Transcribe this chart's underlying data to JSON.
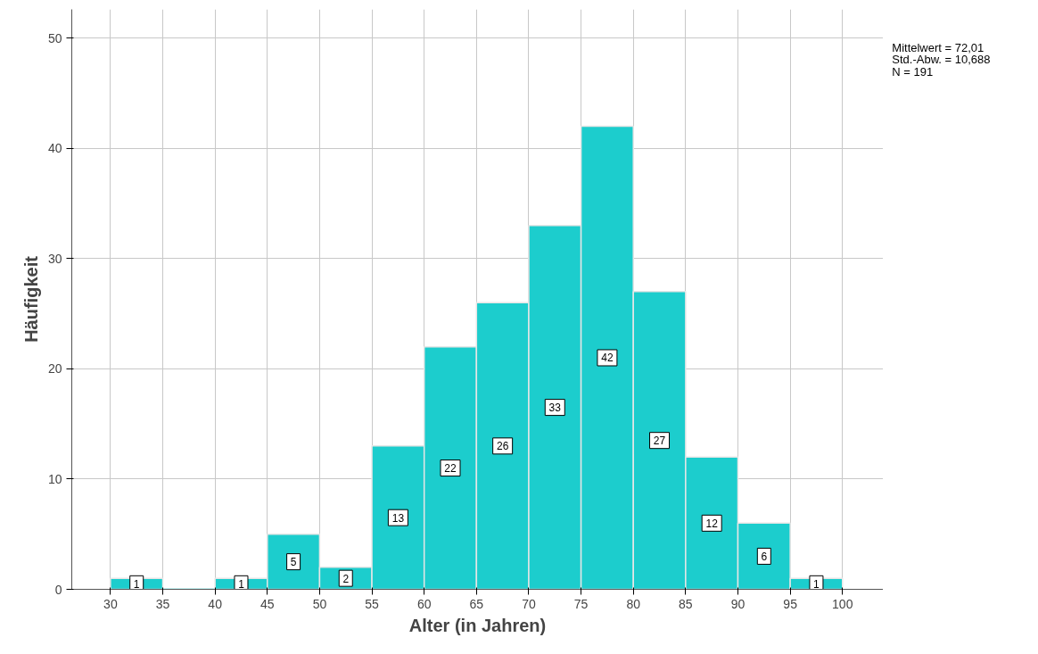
{
  "chart_data": {
    "type": "histogram",
    "xlabel": "Alter (in Jahren)",
    "ylabel": "Häufigkeit",
    "bins": [
      30,
      35,
      40,
      45,
      50,
      55,
      60,
      65,
      70,
      75,
      80,
      85,
      90,
      95,
      100
    ],
    "values": [
      1,
      0,
      1,
      5,
      2,
      13,
      22,
      26,
      33,
      42,
      27,
      12,
      6,
      1
    ],
    "value_labels": [
      "1",
      null,
      "1",
      "5",
      "2",
      "13",
      "22",
      "26",
      "33",
      "42",
      "27",
      "12",
      "6",
      "1"
    ],
    "color": "#1ccdcd",
    "xlim": [
      26.3,
      103.9
    ],
    "ylim": [
      0,
      52.6
    ],
    "xticks": [
      30,
      35,
      40,
      45,
      50,
      55,
      60,
      65,
      70,
      75,
      80,
      85,
      90,
      95,
      100
    ],
    "yticks": [
      0,
      10,
      20,
      30,
      40,
      50
    ],
    "grid": true,
    "annotations": [
      "Mittelwert = 72,01",
      "Std.-Abw. = 10,688",
      "N = 191"
    ]
  }
}
